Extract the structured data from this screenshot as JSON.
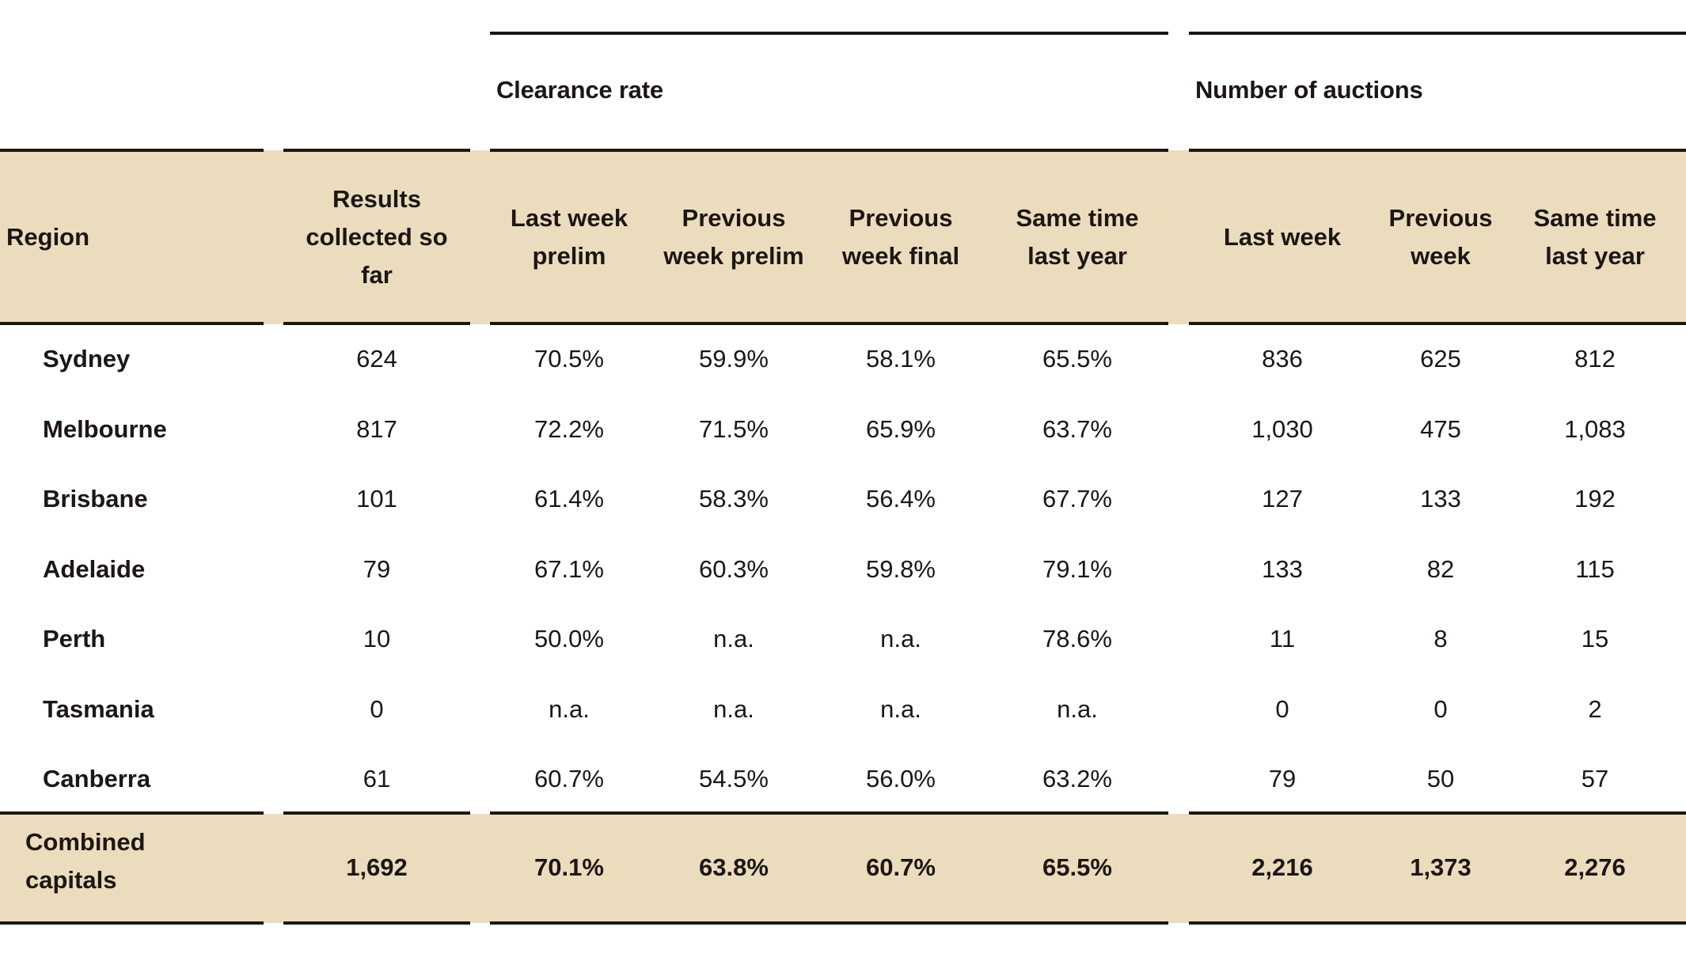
{
  "groups": {
    "clearance_rate": "Clearance rate",
    "number_of_auctions": "Number of auctions"
  },
  "headers": {
    "region": "Region",
    "results": "Results\ncollected so\nfar",
    "cr_last_week_prelim": "Last week\nprelim",
    "cr_prev_week_prelim": "Previous\nweek prelim",
    "cr_prev_week_final": "Previous\nweek final",
    "cr_same_time_last_year": "Same time\nlast year",
    "na_last_week": "Last week",
    "na_previous_week": "Previous\nweek",
    "na_same_time_last_year": "Same time\nlast year"
  },
  "rows": [
    {
      "region": "Sydney",
      "results": "624",
      "cr_lw": "70.5%",
      "cr_pwp": "59.9%",
      "cr_pwf": "58.1%",
      "cr_ly": "65.5%",
      "na_lw": "836",
      "na_pw": "625",
      "na_ly": "812"
    },
    {
      "region": "Melbourne",
      "results": "817",
      "cr_lw": "72.2%",
      "cr_pwp": "71.5%",
      "cr_pwf": "65.9%",
      "cr_ly": "63.7%",
      "na_lw": "1,030",
      "na_pw": "475",
      "na_ly": "1,083"
    },
    {
      "region": "Brisbane",
      "results": "101",
      "cr_lw": "61.4%",
      "cr_pwp": "58.3%",
      "cr_pwf": "56.4%",
      "cr_ly": "67.7%",
      "na_lw": "127",
      "na_pw": "133",
      "na_ly": "192"
    },
    {
      "region": "Adelaide",
      "results": "79",
      "cr_lw": "67.1%",
      "cr_pwp": "60.3%",
      "cr_pwf": "59.8%",
      "cr_ly": "79.1%",
      "na_lw": "133",
      "na_pw": "82",
      "na_ly": "115"
    },
    {
      "region": "Perth",
      "results": "10",
      "cr_lw": "50.0%",
      "cr_pwp": "n.a.",
      "cr_pwf": "n.a.",
      "cr_ly": "78.6%",
      "na_lw": "11",
      "na_pw": "8",
      "na_ly": "15"
    },
    {
      "region": "Tasmania",
      "results": "0",
      "cr_lw": "n.a.",
      "cr_pwp": "n.a.",
      "cr_pwf": "n.a.",
      "cr_ly": "n.a.",
      "na_lw": "0",
      "na_pw": "0",
      "na_ly": "2"
    },
    {
      "region": "Canberra",
      "results": "61",
      "cr_lw": "60.7%",
      "cr_pwp": "54.5%",
      "cr_pwf": "56.0%",
      "cr_ly": "63.2%",
      "na_lw": "79",
      "na_pw": "50",
      "na_ly": "57"
    }
  ],
  "total": {
    "region": "Combined\ncapitals",
    "results": "1,692",
    "cr_lw": "70.1%",
    "cr_pwp": "63.8%",
    "cr_pwf": "60.7%",
    "cr_ly": "65.5%",
    "na_lw": "2,216",
    "na_pw": "1,373",
    "na_ly": "2,276"
  },
  "colors": {
    "band": "#ecdcbe",
    "text": "#1b1714"
  }
}
